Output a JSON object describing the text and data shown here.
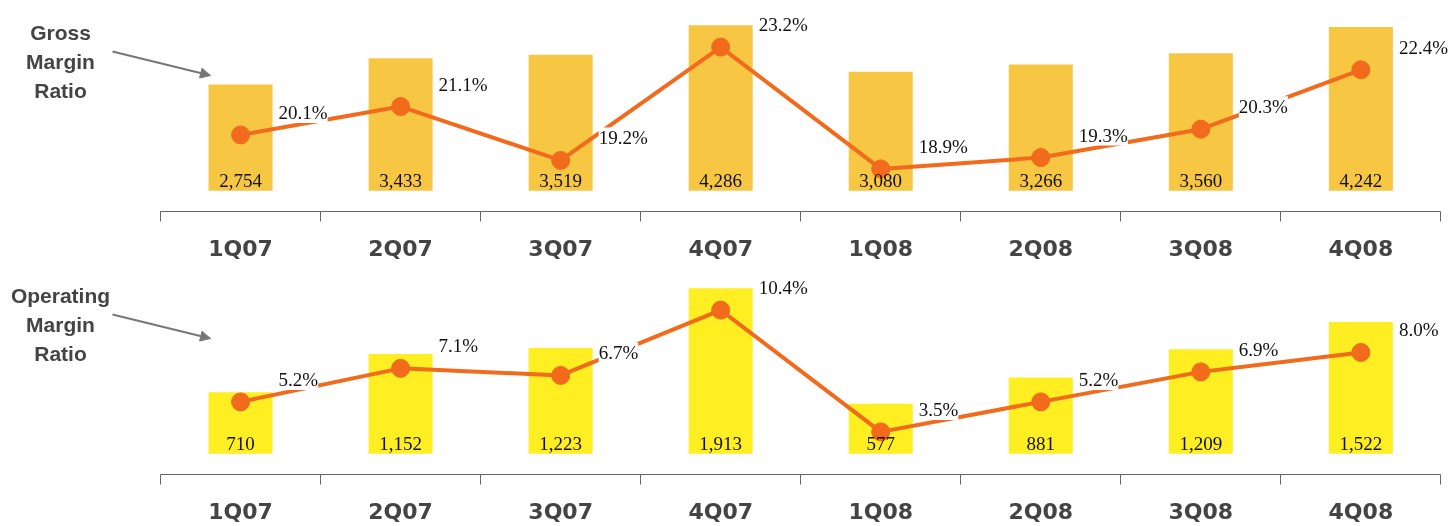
{
  "chart_data": [
    {
      "type": "bar",
      "categories": [
        "1Q07",
        "2Q07",
        "3Q07",
        "4Q07",
        "1Q08",
        "2Q08",
        "3Q08",
        "4Q08"
      ],
      "annotations": [
        "Gross Margin Ratio"
      ],
      "tick_labels": "x",
      "marker": "circle",
      "line_style": "solid",
      "data_labels": true,
      "series": [
        {
          "color": "#f7c744",
          "values": [
            2754,
            3433,
            3519,
            4286,
            3080,
            3266,
            3560,
            4242
          ],
          "value_labels": [
            "2,754",
            "3,433",
            "3,519",
            "4,286",
            "3,080",
            "3,266",
            "3,560",
            "4,242"
          ]
        },
        {
          "type": "line",
          "axis": "y2",
          "color": "#f26a1b",
          "values": [
            20.1,
            21.1,
            19.2,
            23.2,
            18.9,
            19.3,
            20.3,
            22.4
          ],
          "value_labels": [
            "20.1%",
            "21.1%",
            "19.2%",
            "23.2%",
            "18.9%",
            "19.3%",
            "20.3%",
            "22.4%"
          ]
        }
      ]
    },
    {
      "type": "bar",
      "categories": [
        "1Q07",
        "2Q07",
        "3Q07",
        "4Q07",
        "1Q08",
        "2Q08",
        "3Q08",
        "4Q08"
      ],
      "annotations": [
        "Operating Margin Ratio"
      ],
      "tick_labels": "x",
      "marker": "circle",
      "line_style": "solid",
      "data_labels": true,
      "series": [
        {
          "color": "#ffee22",
          "values": [
            710,
            1152,
            1223,
            1913,
            577,
            881,
            1209,
            1522
          ],
          "value_labels": [
            "710",
            "1,152",
            "1,223",
            "1,913",
            "577",
            "881",
            "1,209",
            "1,522"
          ]
        },
        {
          "type": "line",
          "axis": "y2",
          "color": "#f26a1b",
          "values": [
            5.2,
            7.1,
            6.7,
            10.4,
            3.5,
            5.2,
            6.9,
            8.0
          ],
          "value_labels": [
            "5.2%",
            "7.1%",
            "6.7%",
            "10.4%",
            "3.5%",
            "5.2%",
            "6.9%",
            "8.0%"
          ]
        }
      ]
    }
  ]
}
